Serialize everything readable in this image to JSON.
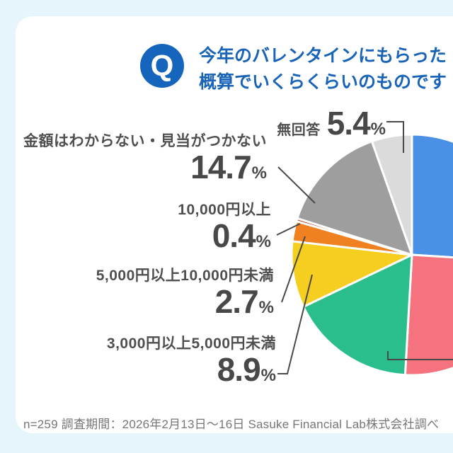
{
  "page": {
    "background_color": "#e6f5fb",
    "card_color": "#ffffff"
  },
  "header": {
    "badge": "Q",
    "badge_color": "#1565bc",
    "text_color": "#1a64b8",
    "line1": "今年のバレンタインにもらった",
    "line2": "概算でいくらくらいのものです"
  },
  "chart_data": {
    "type": "pie",
    "unit": "%",
    "start_angle_deg": 0,
    "direction": "clockwise",
    "percent_sign": "%",
    "note_layout": "pie center near right edge; right-side slice labels cropped out of frame",
    "slices": [
      {
        "label": "",
        "label_visible": false,
        "value": 26.0,
        "percent": "26.0",
        "color": "#4a90e5"
      },
      {
        "label": "",
        "label_visible": false,
        "value": 24.9,
        "percent": "24.9",
        "color": "#f4737e"
      },
      {
        "label": "",
        "label_visible": false,
        "value": 17.0,
        "percent": "17.0",
        "color": "#2bbe8d"
      },
      {
        "label": "3,000円以上5,000円未満",
        "label_visible": true,
        "value": 8.9,
        "percent": "8.9",
        "color": "#f5ce1f"
      },
      {
        "label": "5,000円以上10,000円未満",
        "label_visible": true,
        "value": 2.7,
        "percent": "2.7",
        "color": "#ef8121"
      },
      {
        "label": "10,000円以上",
        "label_visible": true,
        "value": 0.4,
        "percent": "0.4",
        "color": "#bе4f3c"
      },
      {
        "label": "金額はわからない・見当がつかない",
        "label_visible": true,
        "value": 14.7,
        "percent": "14.7",
        "color": "#9e9e9e"
      },
      {
        "label": "無回答",
        "label_visible": true,
        "value": 5.4,
        "percent": "5.4",
        "color": "#dbdbdb"
      }
    ]
  },
  "footer": {
    "text": "n=259 調査期間：2026年2月13日〜16日 Sasuke Financial Lab株式会社調べ"
  }
}
